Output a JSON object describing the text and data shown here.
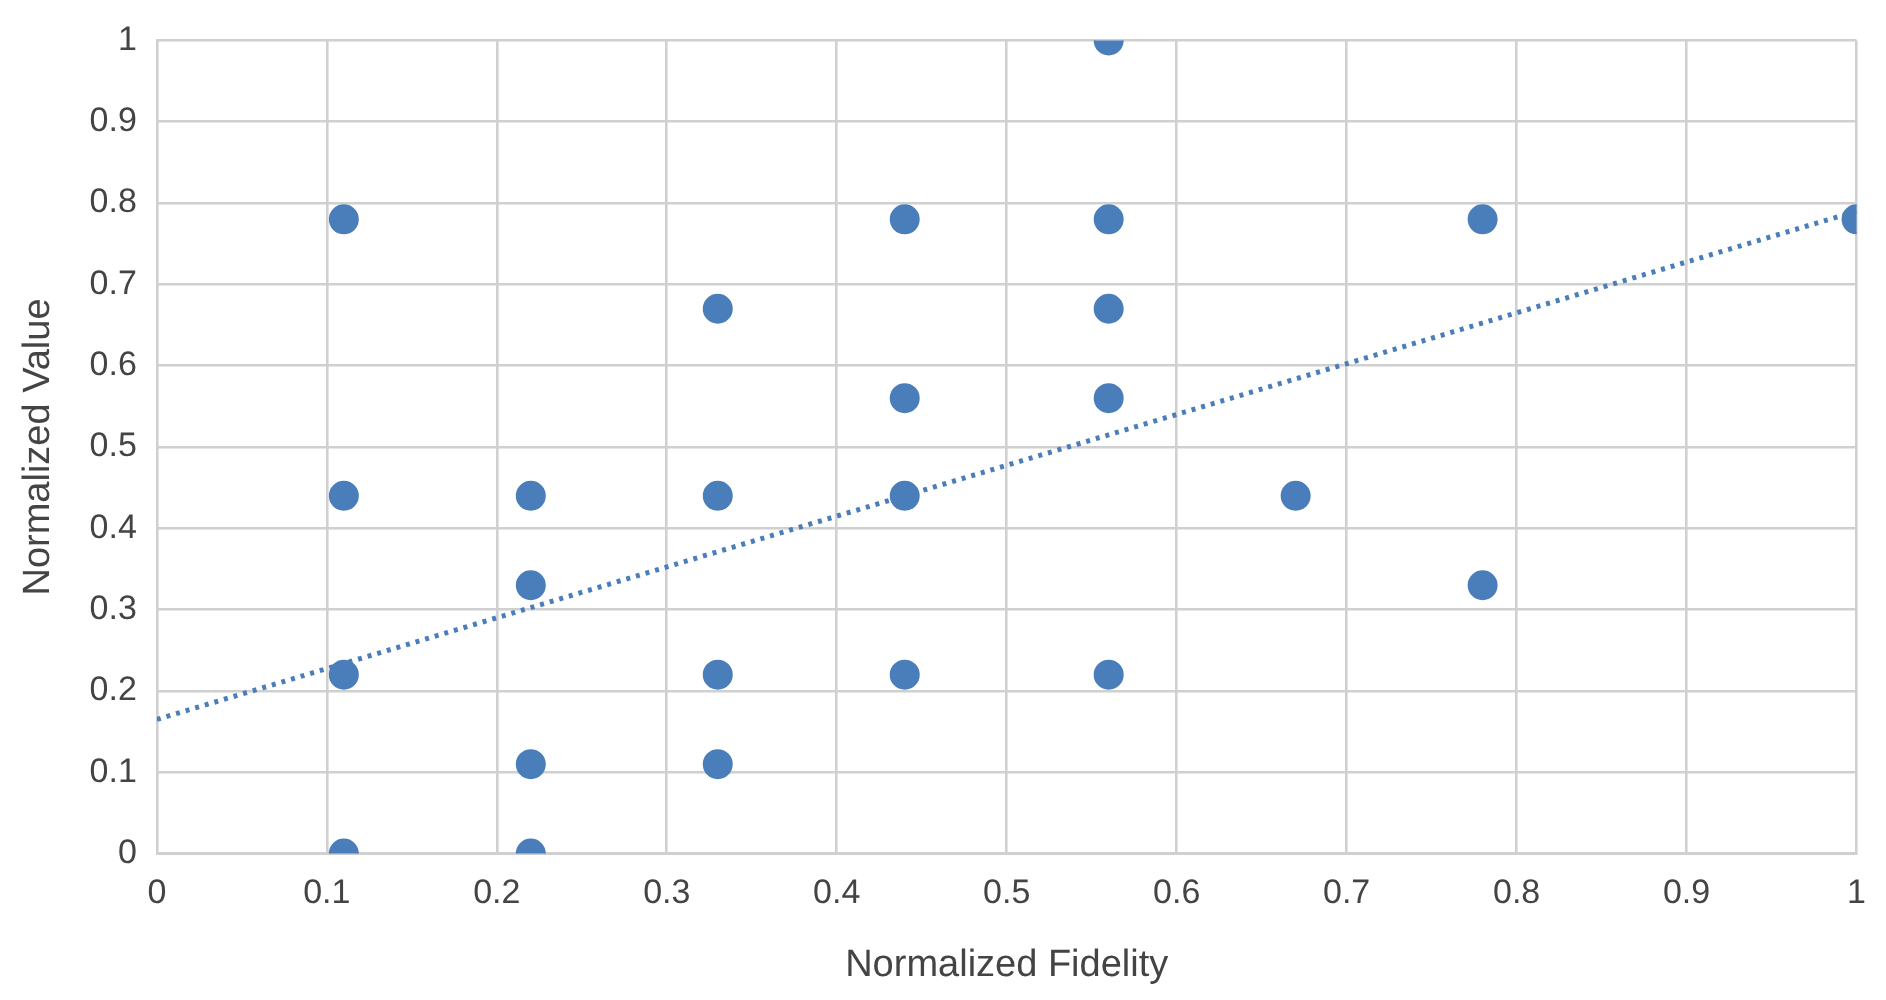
{
  "chart_data": {
    "type": "scatter",
    "xlabel": "Normalized Fidelity",
    "ylabel": "Normalized Value",
    "xlim": [
      0,
      1
    ],
    "ylim": [
      0,
      1
    ],
    "xticks": [
      0,
      0.1,
      0.2,
      0.3,
      0.4,
      0.5,
      0.6,
      0.7,
      0.8,
      0.9,
      1
    ],
    "yticks": [
      0,
      0.1,
      0.2,
      0.3,
      0.4,
      0.5,
      0.6,
      0.7,
      0.8,
      0.9,
      1
    ],
    "grid": true,
    "marker": "circle",
    "series": [
      {
        "color": "#4a7ebb",
        "x": [
          0.11,
          0.11,
          0.11,
          0.11,
          0.22,
          0.22,
          0.22,
          0.22,
          0.33,
          0.33,
          0.33,
          0.33,
          0.44,
          0.44,
          0.44,
          0.44,
          0.56,
          0.56,
          0.56,
          0.56,
          0.56,
          0.67,
          0.78,
          0.78,
          1
        ],
        "values": [
          0.78,
          0.44,
          0.22,
          0,
          0.44,
          0.33,
          0.11,
          0,
          0.67,
          0.44,
          0.22,
          0.11,
          0.78,
          0.56,
          0.44,
          0.22,
          1,
          0.78,
          0.67,
          0.56,
          0.22,
          0.44,
          0.78,
          0.33,
          0.78
        ]
      },
      {
        "type": "line",
        "color": "#4a7ebb",
        "x": [
          0,
          1
        ],
        "values": [
          0.165,
          0.79
        ],
        "line_style": "dotted",
        "marker": "none"
      }
    ]
  }
}
